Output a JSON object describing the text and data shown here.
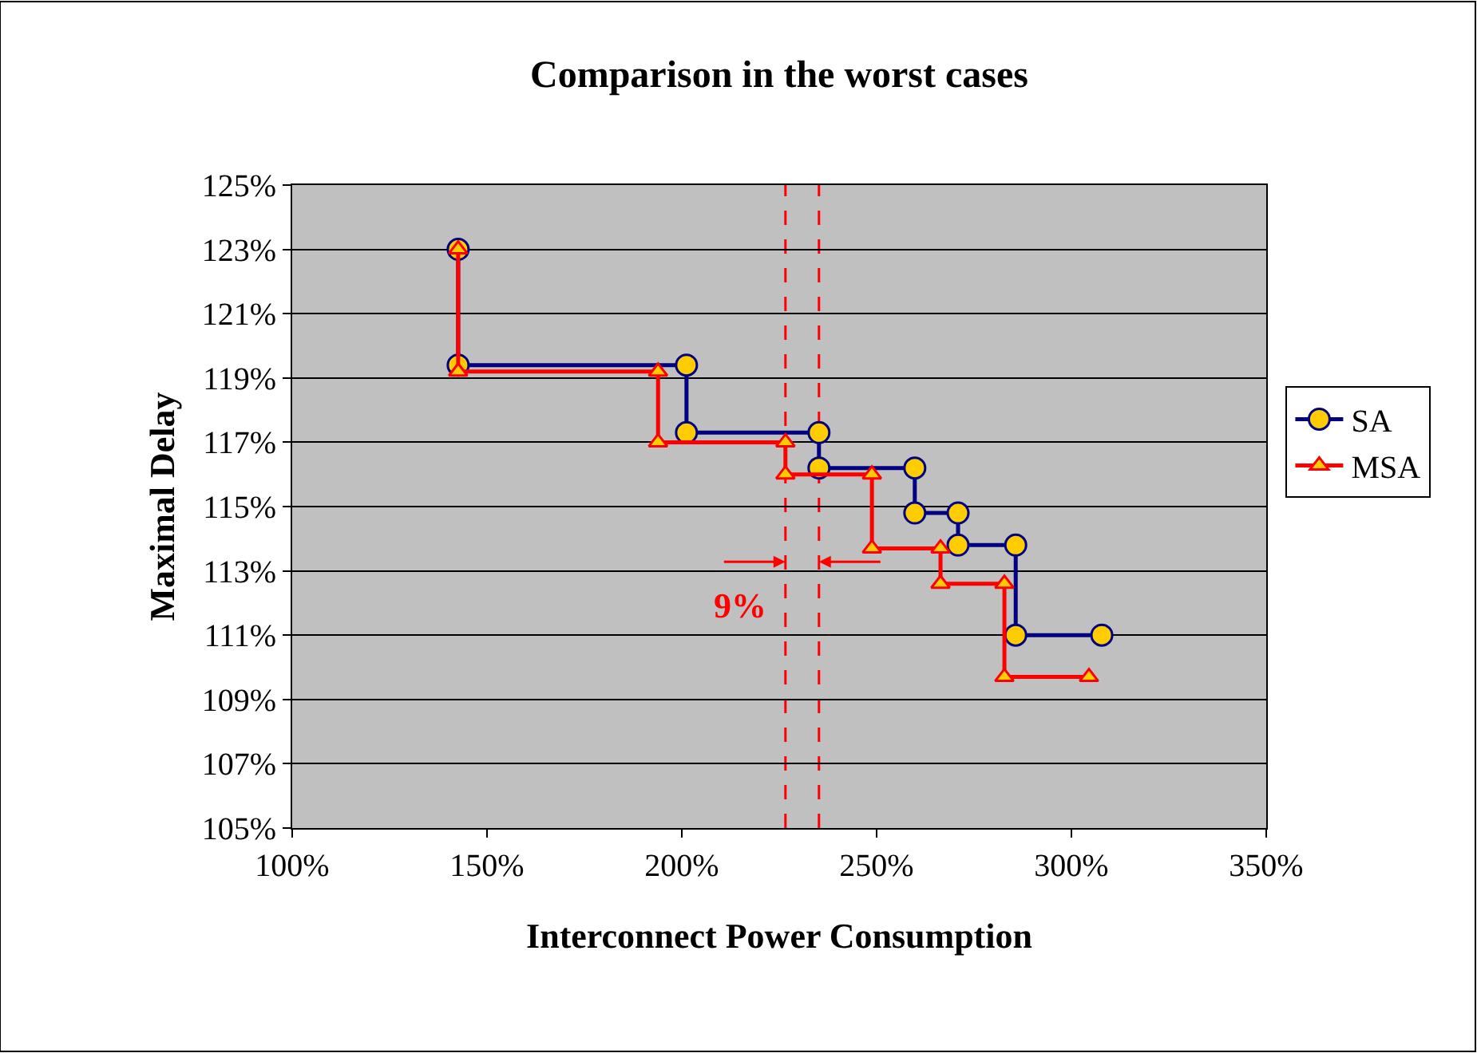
{
  "chart_data": {
    "type": "line",
    "title": "Comparison in the worst cases",
    "xlabel": "Interconnect Power Consumption",
    "ylabel": "Maximal Delay",
    "series": [
      {
        "name": "SA",
        "color": "#000080",
        "x": [
          142.6,
          142.6,
          201.2,
          201.2,
          235.2,
          235.2,
          259.8,
          259.8,
          270.9,
          270.9,
          285.7,
          285.7,
          307.8
        ],
        "values": [
          123.0,
          119.4,
          119.4,
          117.3,
          117.3,
          116.2,
          116.2,
          114.8,
          114.8,
          113.8,
          113.8,
          111.0,
          111.0
        ],
        "marker": "circle"
      },
      {
        "name": "MSA",
        "color": "#ff0000",
        "x": [
          142.6,
          142.6,
          193.9,
          193.9,
          226.6,
          226.6,
          248.8,
          248.8,
          266.4,
          266.4,
          282.8,
          282.8,
          304.5
        ],
        "values": [
          123.0,
          119.2,
          119.2,
          117.0,
          117.0,
          116.0,
          116.0,
          113.7,
          113.7,
          112.6,
          112.6,
          109.7,
          109.7
        ],
        "marker": "triangle"
      }
    ],
    "xlim": [
      100,
      350
    ],
    "xticks": [
      {
        "value": 100,
        "label": "100%"
      },
      {
        "value": 150,
        "label": "150%"
      },
      {
        "value": 200,
        "label": "200%"
      },
      {
        "value": 250,
        "label": "250%"
      },
      {
        "value": 300,
        "label": "300%"
      },
      {
        "value": 350,
        "label": "350%"
      }
    ],
    "ylim": [
      105,
      125
    ],
    "yticks": [
      {
        "value": 105,
        "label": "105%"
      },
      {
        "value": 107,
        "label": "107%"
      },
      {
        "value": 109,
        "label": "109%"
      },
      {
        "value": 111,
        "label": "111%"
      },
      {
        "value": 113,
        "label": "113%"
      },
      {
        "value": 115,
        "label": "115%"
      },
      {
        "value": 117,
        "label": "117%"
      },
      {
        "value": 119,
        "label": "119%"
      },
      {
        "value": 121,
        "label": "121%"
      },
      {
        "value": 123,
        "label": "123%"
      },
      {
        "value": 125,
        "label": "125%"
      }
    ],
    "ref_lines": [
      {
        "axis": "x",
        "value": 226.6,
        "color": "#ff0000",
        "line_style": "dashed"
      },
      {
        "axis": "x",
        "value": 235.2,
        "color": "#ff0000",
        "line_style": "dashed"
      }
    ],
    "annotations": [
      "9%"
    ],
    "grid": "y",
    "legend": "right",
    "line_style": "solid"
  }
}
